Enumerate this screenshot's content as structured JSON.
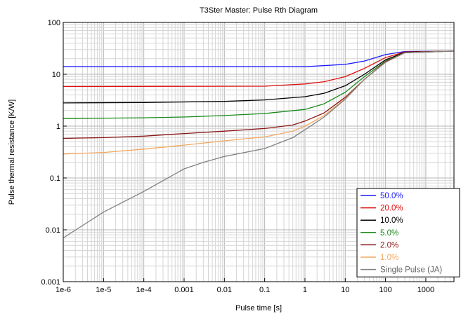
{
  "chart_data": {
    "type": "line",
    "title": "T3Ster Master: Pulse Rth Diagram",
    "xlabel": "Pulse time [s]",
    "ylabel": "Pulse thermal resistance [K/W]",
    "x_scale": "log",
    "y_scale": "log",
    "xlim": [
      1e-06,
      5000
    ],
    "ylim": [
      0.001,
      100
    ],
    "grid": true,
    "legend_position": "bottom-right",
    "x_ticks": [
      1e-06,
      1e-05,
      0.0001,
      0.001,
      0.01,
      0.1,
      1,
      10,
      100,
      1000
    ],
    "x_tick_labels": [
      "1e-6",
      "1e-5",
      "1e-4",
      "0.001",
      "0.01",
      "0.1",
      "1",
      "10",
      "100",
      "1000"
    ],
    "y_ticks": [
      0.001,
      0.01,
      0.1,
      1,
      10,
      100
    ],
    "y_tick_labels": [
      "0.001",
      "0.01",
      "0.1",
      "1",
      "10",
      "100"
    ],
    "series": [
      {
        "name": "50.0%",
        "color": "#1a1aff",
        "points": [
          [
            1e-06,
            14
          ],
          [
            1,
            14
          ],
          [
            10,
            15.5
          ],
          [
            30,
            18
          ],
          [
            100,
            24
          ],
          [
            300,
            27.5
          ],
          [
            5000,
            28
          ]
        ]
      },
      {
        "name": "20.0%",
        "color": "#e01010",
        "points": [
          [
            1e-06,
            5.8
          ],
          [
            0.1,
            5.9
          ],
          [
            1,
            6.5
          ],
          [
            3,
            7.2
          ],
          [
            10,
            9
          ],
          [
            30,
            13
          ],
          [
            100,
            21
          ],
          [
            300,
            27
          ],
          [
            5000,
            28
          ]
        ]
      },
      {
        "name": "10.0%",
        "color": "#000000",
        "points": [
          [
            1e-06,
            2.8
          ],
          [
            0.0001,
            2.85
          ],
          [
            0.01,
            3.0
          ],
          [
            0.1,
            3.2
          ],
          [
            1,
            3.7
          ],
          [
            3,
            4.3
          ],
          [
            10,
            6
          ],
          [
            30,
            10
          ],
          [
            100,
            19
          ],
          [
            300,
            26.5
          ],
          [
            5000,
            28
          ]
        ]
      },
      {
        "name": "5.0%",
        "color": "#1a8a1a",
        "points": [
          [
            1e-06,
            1.4
          ],
          [
            0.0001,
            1.45
          ],
          [
            0.001,
            1.5
          ],
          [
            0.01,
            1.6
          ],
          [
            0.1,
            1.75
          ],
          [
            1,
            2.1
          ],
          [
            3,
            2.7
          ],
          [
            10,
            4.5
          ],
          [
            30,
            9
          ],
          [
            100,
            18
          ],
          [
            300,
            26
          ],
          [
            5000,
            28
          ]
        ]
      },
      {
        "name": "2.0%",
        "color": "#8b1515",
        "points": [
          [
            1e-06,
            0.58
          ],
          [
            1e-05,
            0.6
          ],
          [
            0.0001,
            0.64
          ],
          [
            0.001,
            0.72
          ],
          [
            0.01,
            0.8
          ],
          [
            0.1,
            0.9
          ],
          [
            0.5,
            1.05
          ],
          [
            1,
            1.25
          ],
          [
            3,
            1.8
          ],
          [
            10,
            3.6
          ],
          [
            30,
            8
          ],
          [
            100,
            17.5
          ],
          [
            300,
            26
          ],
          [
            5000,
            28
          ]
        ]
      },
      {
        "name": "1.0%",
        "color": "#f4a860",
        "points": [
          [
            1e-06,
            0.29
          ],
          [
            1e-05,
            0.31
          ],
          [
            0.0001,
            0.36
          ],
          [
            0.001,
            0.43
          ],
          [
            0.01,
            0.52
          ],
          [
            0.1,
            0.62
          ],
          [
            0.5,
            0.8
          ],
          [
            1,
            1.0
          ],
          [
            3,
            1.6
          ],
          [
            10,
            3.4
          ],
          [
            30,
            8
          ],
          [
            100,
            17
          ],
          [
            300,
            26
          ],
          [
            5000,
            28
          ]
        ]
      },
      {
        "name": "Single Pulse (JA)",
        "color": "#808080",
        "points": [
          [
            1e-06,
            0.007
          ],
          [
            1e-05,
            0.022
          ],
          [
            0.0001,
            0.055
          ],
          [
            0.001,
            0.15
          ],
          [
            0.003,
            0.2
          ],
          [
            0.01,
            0.26
          ],
          [
            0.1,
            0.37
          ],
          [
            0.5,
            0.6
          ],
          [
            1,
            0.85
          ],
          [
            3,
            1.5
          ],
          [
            10,
            3.3
          ],
          [
            30,
            8
          ],
          [
            100,
            17
          ],
          [
            300,
            26
          ],
          [
            5000,
            28
          ]
        ]
      }
    ]
  }
}
